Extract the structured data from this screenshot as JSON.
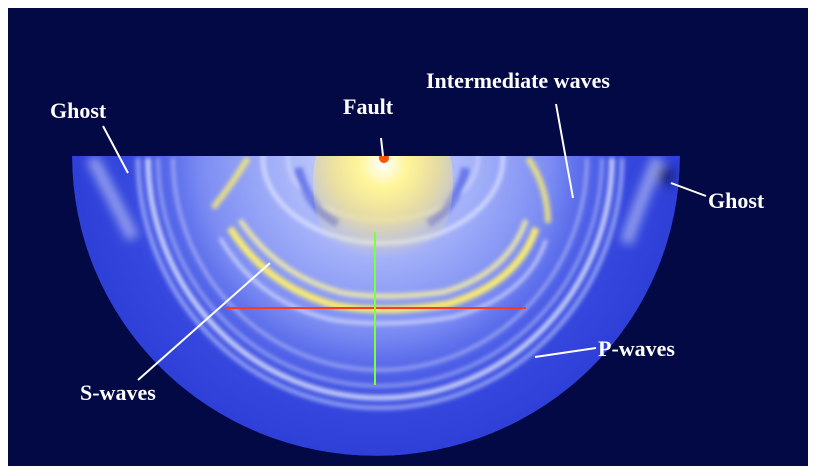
{
  "labels": {
    "ghost_left": "Ghost",
    "fault": "Fault",
    "intermediate": "Intermediate waves",
    "ghost_right": "Ghost",
    "p_waves": "P-waves",
    "s_waves": "S-waves"
  },
  "colors": {
    "background": "#020944",
    "domain": "#2c3dd6",
    "wave_pale": "#c9d6ff",
    "wave_yellow": "#fff06a",
    "fault_source": "#ff5500",
    "horizontal_line": "#ff3a1a",
    "vertical_line": "#7dff3a",
    "label_text": "#ffffff"
  }
}
